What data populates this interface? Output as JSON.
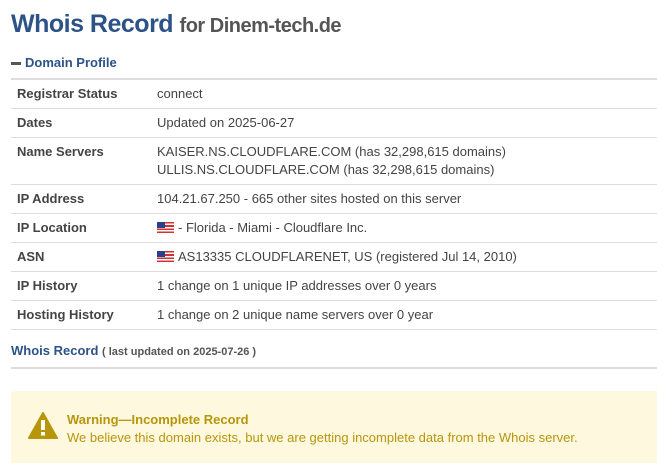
{
  "header": {
    "title": "Whois Record",
    "for_text": "for Dinem-tech.de"
  },
  "profile": {
    "label": "Domain Profile"
  },
  "rows": [
    {
      "label": "Registrar Status",
      "value": "connect"
    },
    {
      "label": "Dates",
      "value": "Updated on 2025-06-27"
    },
    {
      "label": "Name Servers",
      "value": "KAISER.NS.CLOUDFLARE.COM (has 32,298,615 domains)",
      "value2": "ULLIS.NS.CLOUDFLARE.COM (has 32,298,615 domains)"
    },
    {
      "label": "IP Address",
      "value": "104.21.67.250 - 665 other sites hosted on this server"
    },
    {
      "label": "IP Location",
      "value": "- Florida - Miami - Cloudflare Inc.",
      "icon": "us-flag-icon"
    },
    {
      "label": "ASN",
      "value": "AS13335 CLOUDFLARENET, US (registered Jul 14, 2010)",
      "icon": "us-flag-icon"
    },
    {
      "label": "IP History",
      "value": "1 change on 1 unique IP addresses over 0 years"
    },
    {
      "label": "Hosting History",
      "value": "1 change on 2 unique name servers over 0 year"
    }
  ],
  "whois": {
    "title": "Whois Record",
    "sub": "( last updated on 2025-07-26 )"
  },
  "warning": {
    "title": "Warning—Incomplete Record",
    "message": "We believe this domain exists, but we are getting incomplete data from the Whois server.",
    "color": "#b8960c",
    "background": "#fdf8de"
  }
}
